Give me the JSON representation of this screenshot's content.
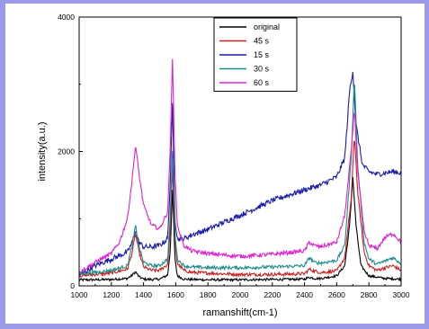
{
  "chart_data": {
    "type": "line",
    "xlabel": "ramanshift(cm-1)",
    "ylabel": "intensity(a.u.)",
    "xlim": [
      1000,
      3000
    ],
    "ylim": [
      0,
      4000
    ],
    "xticks": [
      1000,
      1200,
      1400,
      1600,
      1800,
      2000,
      2200,
      2400,
      2600,
      2800,
      3000
    ],
    "yticks": [
      0,
      2000,
      4000
    ],
    "grid": false,
    "legend_position": "top-right",
    "colors": {
      "original": "#000000",
      "45 s": "#cc2020",
      "15 s": "#1c1ca8",
      "30 s": "#1e8c8c",
      "60 s": "#e020d0"
    },
    "series": [
      {
        "name": "original",
        "x": [
          1000,
          1100,
          1200,
          1300,
          1330,
          1350,
          1370,
          1400,
          1450,
          1500,
          1550,
          1565,
          1580,
          1595,
          1610,
          1650,
          1700,
          1800,
          2000,
          2200,
          2400,
          2430,
          2460,
          2500,
          2600,
          2650,
          2680,
          2700,
          2720,
          2750,
          2800,
          2900,
          3000
        ],
        "y": [
          90,
          90,
          95,
          110,
          160,
          210,
          140,
          100,
          95,
          100,
          160,
          500,
          1430,
          400,
          150,
          100,
          95,
          90,
          90,
          95,
          100,
          130,
          110,
          110,
          150,
          300,
          900,
          1620,
          900,
          300,
          150,
          110,
          100
        ]
      },
      {
        "name": "45 s",
        "x": [
          1000,
          1100,
          1200,
          1300,
          1330,
          1350,
          1370,
          1400,
          1450,
          1500,
          1550,
          1565,
          1580,
          1595,
          1610,
          1650,
          1700,
          1800,
          2000,
          2200,
          2400,
          2430,
          2460,
          2500,
          2600,
          2650,
          2690,
          2710,
          2730,
          2770,
          2800,
          2850,
          2900,
          2950,
          3000
        ],
        "y": [
          150,
          170,
          190,
          250,
          500,
          780,
          520,
          280,
          230,
          230,
          320,
          800,
          1780,
          700,
          330,
          230,
          200,
          190,
          170,
          170,
          180,
          250,
          220,
          200,
          220,
          420,
          1300,
          2250,
          1400,
          500,
          300,
          230,
          270,
          300,
          230
        ]
      },
      {
        "name": "15 s",
        "x": [
          1000,
          1100,
          1200,
          1300,
          1330,
          1350,
          1370,
          1400,
          1450,
          1500,
          1550,
          1565,
          1580,
          1595,
          1610,
          1650,
          1700,
          1800,
          1900,
          2000,
          2100,
          2200,
          2300,
          2400,
          2500,
          2600,
          2650,
          2680,
          2700,
          2720,
          2760,
          2800,
          2850,
          2900,
          2950,
          3000
        ],
        "y": [
          160,
          300,
          400,
          500,
          650,
          830,
          650,
          580,
          580,
          600,
          700,
          1500,
          2700,
          1000,
          700,
          700,
          760,
          840,
          950,
          1050,
          1160,
          1270,
          1350,
          1430,
          1500,
          1620,
          1900,
          2900,
          3200,
          2400,
          1800,
          1700,
          1660,
          1680,
          1700,
          1680
        ]
      },
      {
        "name": "30 s",
        "x": [
          1000,
          1100,
          1200,
          1300,
          1330,
          1350,
          1370,
          1400,
          1450,
          1500,
          1550,
          1565,
          1580,
          1595,
          1610,
          1650,
          1700,
          1800,
          2000,
          2200,
          2400,
          2430,
          2460,
          2500,
          2600,
          2650,
          2690,
          2710,
          2730,
          2770,
          2800,
          2850,
          2900,
          2950,
          3000
        ],
        "y": [
          180,
          200,
          230,
          300,
          600,
          900,
          600,
          350,
          300,
          300,
          400,
          1000,
          2000,
          800,
          400,
          300,
          280,
          270,
          270,
          280,
          300,
          420,
          350,
          340,
          380,
          600,
          1900,
          3100,
          1800,
          650,
          400,
          320,
          370,
          420,
          330
        ]
      },
      {
        "name": "60 s",
        "x": [
          1000,
          1100,
          1200,
          1250,
          1300,
          1330,
          1350,
          1370,
          1400,
          1450,
          1500,
          1550,
          1565,
          1580,
          1595,
          1610,
          1650,
          1700,
          1800,
          2000,
          2200,
          2400,
          2430,
          2460,
          2500,
          2600,
          2650,
          2690,
          2710,
          2730,
          2770,
          2800,
          2850,
          2900,
          2950,
          3000
        ],
        "y": [
          200,
          350,
          480,
          650,
          1000,
          1600,
          2100,
          1700,
          1200,
          900,
          850,
          1100,
          2000,
          3380,
          1700,
          900,
          600,
          520,
          480,
          440,
          470,
          520,
          650,
          600,
          580,
          650,
          1050,
          2000,
          2650,
          1700,
          800,
          600,
          550,
          720,
          780,
          650
        ]
      }
    ]
  }
}
